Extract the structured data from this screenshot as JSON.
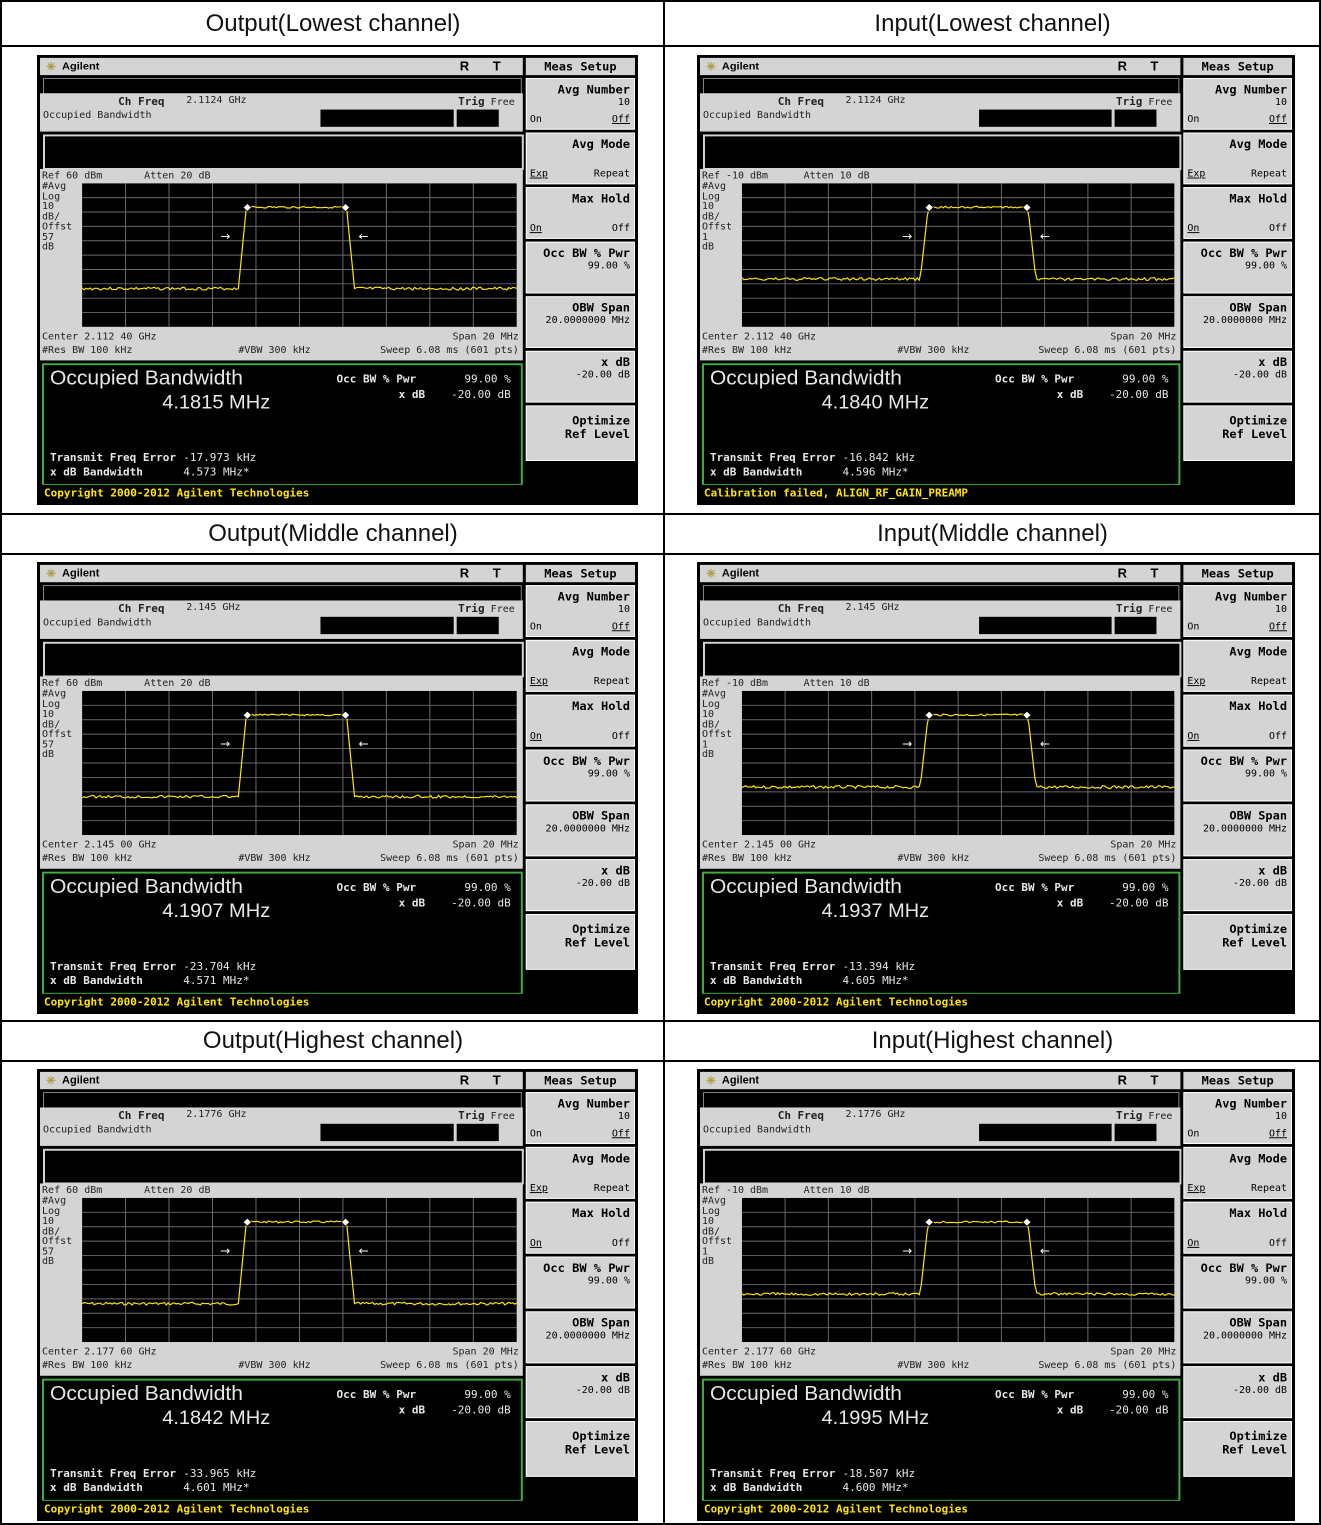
{
  "panels": [
    {
      "header": "Output(Lowest channel)",
      "brand": "Agilent",
      "indicators": "R T",
      "meas_setup": "Meas Setup",
      "ch_freq_label": "Ch Freq",
      "ch_freq": "2.1124 GHz",
      "trig_label": "Trig",
      "trig_value": "Free",
      "meas_name": "Occupied Bandwidth",
      "ref": "Ref 60 dBm",
      "atten": "Atten 20 dB",
      "side_labels": [
        "#Avg",
        "Log",
        "10",
        "dB/",
        "Offst",
        "57",
        "dB"
      ],
      "center": "Center 2.112 40 GHz",
      "span": "Span 20 MHz",
      "rbw": "#Res BW 100 kHz",
      "vbw": "#VBW 300 kHz",
      "sweep": "Sweep 6.08 ms (601 pts)",
      "result_title": "Occupied Bandwidth",
      "result_value": "4.1815 MHz",
      "occ_bw_label": "Occ BW % Pwr",
      "occ_bw_value": "99.00 %",
      "xdb_label": "x dB",
      "xdb_value": "-20.00 dB",
      "tfe_label": "Transmit Freq Error",
      "tfe_value": "-17.973 kHz",
      "xdbbw_label": "x dB Bandwidth",
      "xdbbw_value": "4.573 MHz*",
      "footer": "Copyright 2000-2012 Agilent Technologies"
    },
    {
      "header": "Input(Lowest channel)",
      "brand": "Agilent",
      "indicators": "R T",
      "meas_setup": "Meas Setup",
      "ch_freq_label": "Ch Freq",
      "ch_freq": "2.1124 GHz",
      "trig_label": "Trig",
      "trig_value": "Free",
      "meas_name": "Occupied Bandwidth",
      "ref": "Ref -10 dBm",
      "atten": "Atten 10 dB",
      "side_labels": [
        "#Avg",
        "Log",
        "10",
        "dB/",
        "Offst",
        "1",
        "dB"
      ],
      "center": "Center 2.112 40 GHz",
      "span": "Span 20 MHz",
      "rbw": "#Res BW 100 kHz",
      "vbw": "#VBW 300 kHz",
      "sweep": "Sweep 6.08 ms (601 pts)",
      "result_title": "Occupied Bandwidth",
      "result_value": "4.1840 MHz",
      "occ_bw_label": "Occ BW % Pwr",
      "occ_bw_value": "99.00 %",
      "xdb_label": "x dB",
      "xdb_value": "-20.00 dB",
      "tfe_label": "Transmit Freq Error",
      "tfe_value": "-16.842 kHz",
      "xdbbw_label": "x dB Bandwidth",
      "xdbbw_value": "4.596 MHz*",
      "footer": "Calibration failed, ALIGN_RF_GAIN_PREAMP"
    },
    {
      "header": "Output(Middle channel)",
      "brand": "Agilent",
      "indicators": "R T",
      "meas_setup": "Meas Setup",
      "ch_freq_label": "Ch Freq",
      "ch_freq": "2.145 GHz",
      "trig_label": "Trig",
      "trig_value": "Free",
      "meas_name": "Occupied Bandwidth",
      "ref": "Ref 60 dBm",
      "atten": "Atten 20 dB",
      "side_labels": [
        "#Avg",
        "Log",
        "10",
        "dB/",
        "Offst",
        "57",
        "dB"
      ],
      "center": "Center 2.145 00 GHz",
      "span": "Span 20 MHz",
      "rbw": "#Res BW 100 kHz",
      "vbw": "#VBW 300 kHz",
      "sweep": "Sweep 6.08 ms (601 pts)",
      "result_title": "Occupied Bandwidth",
      "result_value": "4.1907 MHz",
      "occ_bw_label": "Occ BW % Pwr",
      "occ_bw_value": "99.00 %",
      "xdb_label": "x dB",
      "xdb_value": "-20.00 dB",
      "tfe_label": "Transmit Freq Error",
      "tfe_value": "-23.704 kHz",
      "xdbbw_label": "x dB Bandwidth",
      "xdbbw_value": "4.571 MHz*",
      "footer": "Copyright 2000-2012 Agilent Technologies"
    },
    {
      "header": "Input(Middle channel)",
      "brand": "Agilent",
      "indicators": "R T",
      "meas_setup": "Meas Setup",
      "ch_freq_label": "Ch Freq",
      "ch_freq": "2.145 GHz",
      "trig_label": "Trig",
      "trig_value": "Free",
      "meas_name": "Occupied Bandwidth",
      "ref": "Ref -10 dBm",
      "atten": "Atten 10 dB",
      "side_labels": [
        "#Avg",
        "Log",
        "10",
        "dB/",
        "Offst",
        "1",
        "dB"
      ],
      "center": "Center 2.145 00 GHz",
      "span": "Span 20 MHz",
      "rbw": "#Res BW 100 kHz",
      "vbw": "#VBW 300 kHz",
      "sweep": "Sweep 6.08 ms (601 pts)",
      "result_title": "Occupied Bandwidth",
      "result_value": "4.1937 MHz",
      "occ_bw_label": "Occ BW % Pwr",
      "occ_bw_value": "99.00 %",
      "xdb_label": "x dB",
      "xdb_value": "-20.00 dB",
      "tfe_label": "Transmit Freq Error",
      "tfe_value": "-13.394 kHz",
      "xdbbw_label": "x dB Bandwidth",
      "xdbbw_value": "4.605 MHz*",
      "footer": "Copyright 2000-2012 Agilent Technologies"
    },
    {
      "header": "Output(Highest channel)",
      "brand": "Agilent",
      "indicators": "R T",
      "meas_setup": "Meas Setup",
      "ch_freq_label": "Ch Freq",
      "ch_freq": "2.1776 GHz",
      "trig_label": "Trig",
      "trig_value": "Free",
      "meas_name": "Occupied Bandwidth",
      "ref": "Ref 60 dBm",
      "atten": "Atten 20 dB",
      "side_labels": [
        "#Avg",
        "Log",
        "10",
        "dB/",
        "Offst",
        "57",
        "dB"
      ],
      "center": "Center 2.177 60 GHz",
      "span": "Span 20 MHz",
      "rbw": "#Res BW 100 kHz",
      "vbw": "#VBW 300 kHz",
      "sweep": "Sweep 6.08 ms (601 pts)",
      "result_title": "Occupied Bandwidth",
      "result_value": "4.1842 MHz",
      "occ_bw_label": "Occ BW % Pwr",
      "occ_bw_value": "99.00 %",
      "xdb_label": "x dB",
      "xdb_value": "-20.00 dB",
      "tfe_label": "Transmit Freq Error",
      "tfe_value": "-33.965 kHz",
      "xdbbw_label": "x dB Bandwidth",
      "xdbbw_value": "4.601 MHz*",
      "footer": "Copyright 2000-2012 Agilent Technologies"
    },
    {
      "header": "Input(Highest channel)",
      "brand": "Agilent",
      "indicators": "R T",
      "meas_setup": "Meas Setup",
      "ch_freq_label": "Ch Freq",
      "ch_freq": "2.1776 GHz",
      "trig_label": "Trig",
      "trig_value": "Free",
      "meas_name": "Occupied Bandwidth",
      "ref": "Ref -10 dBm",
      "atten": "Atten 10 dB",
      "side_labels": [
        "#Avg",
        "Log",
        "10",
        "dB/",
        "Offst",
        "1",
        "dB"
      ],
      "center": "Center 2.177 60 GHz",
      "span": "Span 20 MHz",
      "rbw": "#Res BW 100 kHz",
      "vbw": "#VBW 300 kHz",
      "sweep": "Sweep 6.08 ms (601 pts)",
      "result_title": "Occupied Bandwidth",
      "result_value": "4.1995 MHz",
      "occ_bw_label": "Occ BW % Pwr",
      "occ_bw_value": "99.00 %",
      "xdb_label": "x dB",
      "xdb_value": "-20.00 dB",
      "tfe_label": "Transmit Freq Error",
      "tfe_value": "-18.507 kHz",
      "xdbbw_label": "x dB Bandwidth",
      "xdbbw_value": "4.600 MHz*",
      "footer": "Copyright 2000-2012 Agilent Technologies"
    }
  ],
  "softkeys": {
    "avg_number": {
      "label": "Avg Number",
      "value": "10",
      "left": "On",
      "right": "Off"
    },
    "avg_mode": {
      "label": "Avg Mode",
      "left": "Exp",
      "right": "Repeat"
    },
    "max_hold": {
      "label": "Max Hold",
      "left": "On",
      "right": "Off"
    },
    "occ_bw_pwr": {
      "label": "Occ BW % Pwr",
      "value": "99.00 %"
    },
    "obw_span": {
      "label": "OBW Span",
      "value": "20.0000000 MHz"
    },
    "x_db": {
      "label": "x dB",
      "value": "-20.00 dB"
    },
    "optimize": {
      "label_line1": "Optimize",
      "label_line2": "Ref Level"
    }
  },
  "colors": {
    "screen_bg": "#000000",
    "panel_gray": "#d4d4d4",
    "trace_yellow": "#ffe600",
    "result_border": "#3fae3f",
    "footer_text": "#ffe600"
  }
}
